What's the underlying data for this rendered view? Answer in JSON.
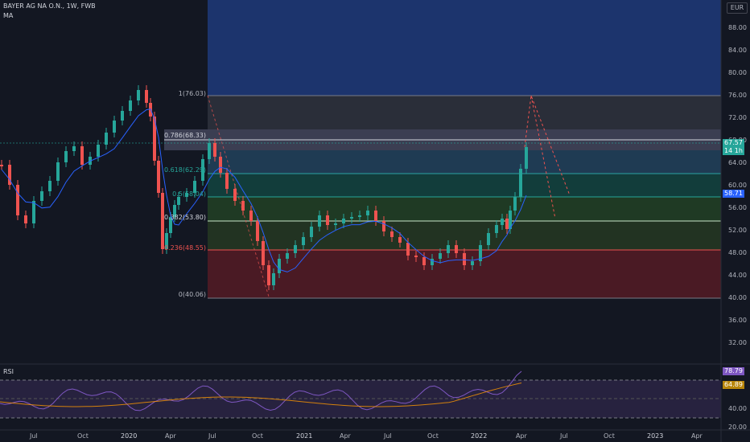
{
  "header": {
    "symbol_line": "BAYER AG NA O.N., 1W, FWB",
    "indicator_ma": "MA",
    "currency": "EUR"
  },
  "rsi": {
    "label": "RSI",
    "value_badge": "78.79",
    "ma_badge": "64.89",
    "ticks": [
      "80.00",
      "60.00",
      "40.00",
      "20.00"
    ]
  },
  "price_axis": {
    "ticks": [
      "88.00",
      "84.00",
      "80.00",
      "76.00",
      "72.00",
      "68.00",
      "64.00",
      "60.00",
      "56.00",
      "52.00",
      "48.00",
      "44.00",
      "40.00",
      "36.00",
      "32.00"
    ],
    "last_price_badge": "67.57",
    "countdown_badge": "14 1h",
    "ma_badge": "58.71"
  },
  "time_axis": [
    "Jul",
    "Oct",
    "2020",
    "Apr",
    "Jul",
    "Oct",
    "2021",
    "Apr",
    "Jul",
    "Oct",
    "2022",
    "Apr",
    "Jul",
    "Oct",
    "2023",
    "Apr"
  ],
  "fibonacci": [
    {
      "label": "1(76.03)",
      "color": "#b2b5be"
    },
    {
      "label": "0.786(68.33)",
      "color": "#d1d4dc"
    },
    {
      "label": "0.618(62.29)",
      "color": "#26a69a"
    },
    {
      "label": "0.5(58.04)",
      "color": "#26a69a"
    },
    {
      "label": "0.382(53.80)",
      "color": "#d1d4dc"
    },
    {
      "label": "0.236(48.55)",
      "color": "#ef5350"
    },
    {
      "label": "0(40.06)",
      "color": "#b2b5be"
    }
  ],
  "colors": {
    "background": "#131722",
    "up": "#26a69a",
    "down": "#ef5350",
    "ma_line": "#2962ff",
    "rsi_line": "#7e57c2",
    "rsi_ma": "#ff9800"
  }
}
